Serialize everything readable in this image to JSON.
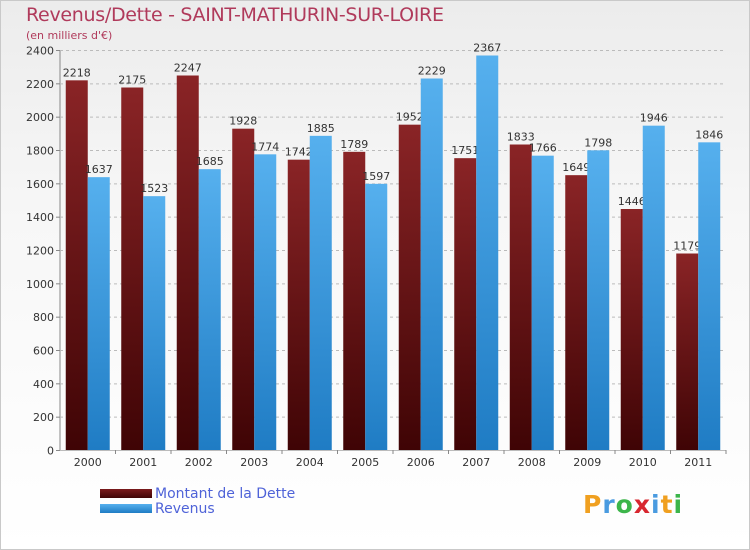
{
  "header": {
    "title": "Revenus/Dette - SAINT-MATHURIN-SUR-LOIRE",
    "subtitle": "(en milliers d'€)"
  },
  "colors": {
    "debt_bar": "#7a1a1c",
    "debt_bar_dark": "#3f0405",
    "revenue_bar": "#4aa8ea",
    "revenue_bar_dark": "#1f7cc4",
    "grid": "#bbbbbb",
    "axis_text": "#333333"
  },
  "legend": {
    "items": [
      {
        "label": "Montant de la Dette",
        "color": "#7a1a1c"
      },
      {
        "label": "Revenus",
        "color": "#4aa8ea"
      }
    ]
  },
  "logo": {
    "letters": [
      "P",
      "r",
      "o",
      "x",
      "i",
      "t",
      "i"
    ],
    "colors": [
      "#f0a020",
      "#4a9be0",
      "#3cb54a",
      "#d8262f",
      "#4a9be0",
      "#f0a020",
      "#3cb54a"
    ]
  },
  "chart_data": {
    "type": "bar",
    "categories": [
      "2000",
      "2001",
      "2002",
      "2003",
      "2004",
      "2005",
      "2006",
      "2007",
      "2008",
      "2009",
      "2010",
      "2011"
    ],
    "series": [
      {
        "name": "Montant de la Dette",
        "values": [
          2218,
          2175,
          2247,
          1928,
          1742,
          1789,
          1952,
          1751,
          1833,
          1649,
          1446,
          1179
        ]
      },
      {
        "name": "Revenus",
        "values": [
          1637,
          1523,
          1685,
          1774,
          1885,
          1597,
          2229,
          2367,
          1766,
          1798,
          1946,
          1846
        ]
      }
    ],
    "ylim": [
      0,
      2400
    ],
    "yticks": [
      0,
      200,
      400,
      600,
      800,
      1000,
      1200,
      1400,
      1600,
      1800,
      2000,
      2200,
      2400
    ],
    "grid": true,
    "legend_position": "bottom-left"
  }
}
